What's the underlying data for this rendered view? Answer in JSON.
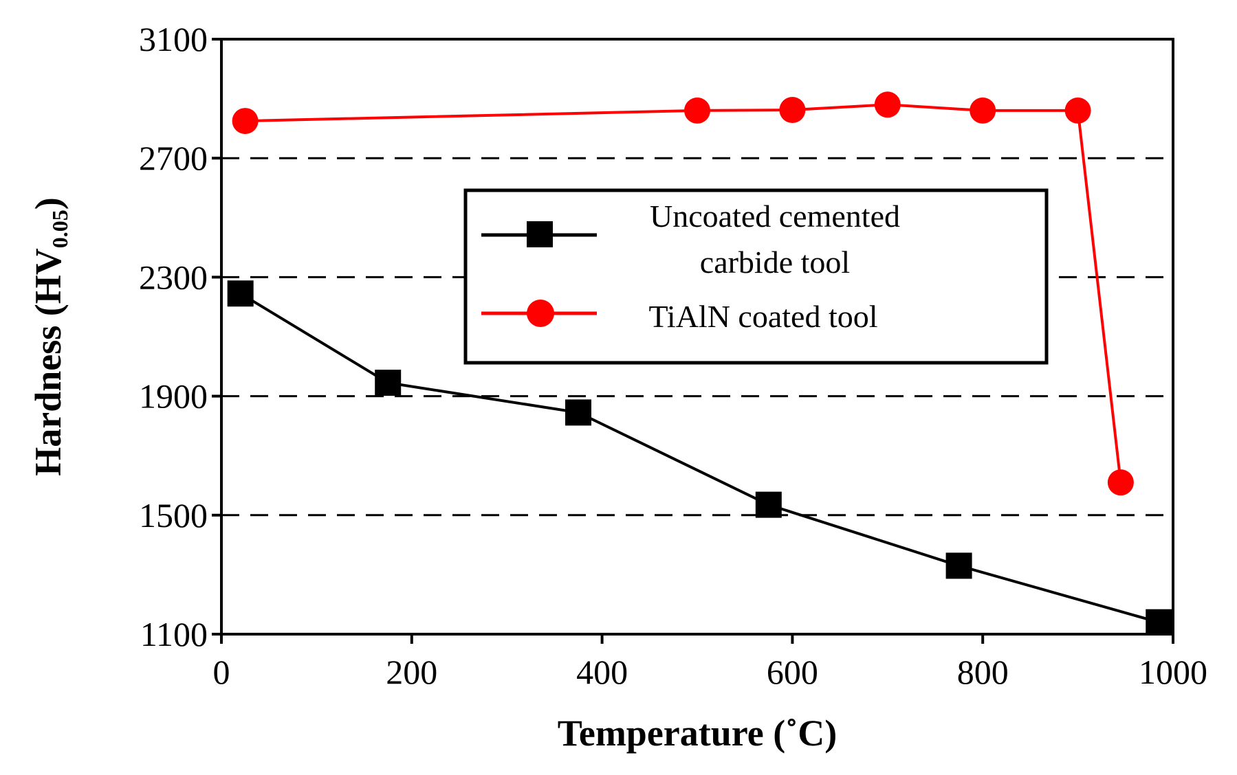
{
  "chart_data": {
    "type": "line",
    "title": "",
    "xlabel": "Temperature (˚C)",
    "ylabel_main": "Hardness (HV",
    "ylabel_sub": "0.05",
    "ylabel_close": ")",
    "xlim": [
      0,
      1000
    ],
    "ylim": [
      1100,
      3100
    ],
    "xticks": [
      0,
      200,
      400,
      600,
      800,
      1000
    ],
    "yticks": [
      1100,
      1500,
      1900,
      2300,
      2700,
      3100
    ],
    "xtick_labels": [
      "0",
      "200",
      "400",
      "600",
      "800",
      "1000"
    ],
    "ytick_labels": [
      "1100",
      "1500",
      "1900",
      "2300",
      "2700",
      "3100"
    ],
    "gridlines_y": [
      1500,
      1900,
      2300,
      2700
    ],
    "legend_position": "upper-center",
    "series": [
      {
        "name_line1": "Uncoated cemented",
        "name_line2": "carbide tool",
        "color": "#000000",
        "marker": "square",
        "x": [
          20,
          175,
          375,
          575,
          775,
          985
        ],
        "y": [
          2245,
          1945,
          1845,
          1535,
          1330,
          1140
        ]
      },
      {
        "name_line1": "TiAlN coated tool",
        "color": "#ff0000",
        "marker": "circle",
        "x": [
          25,
          500,
          600,
          700,
          800,
          900,
          945
        ],
        "y": [
          2825,
          2860,
          2862,
          2880,
          2860,
          2860,
          1610
        ]
      }
    ]
  }
}
